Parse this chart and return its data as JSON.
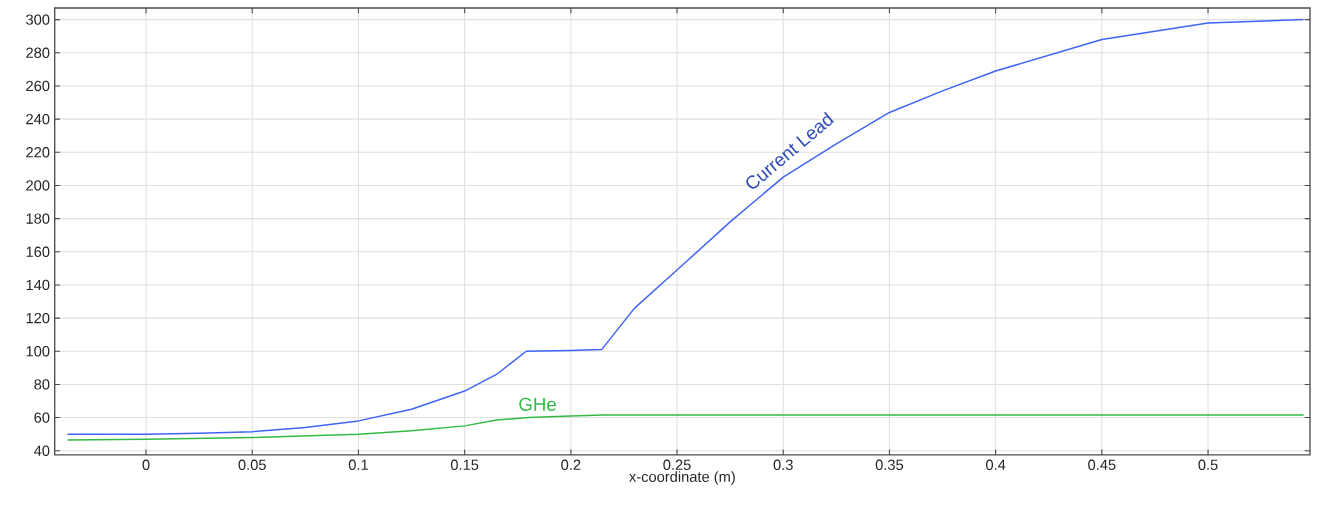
{
  "chart_data": {
    "type": "line",
    "xlabel": "x-coordinate (m)",
    "series": [
      {
        "name": "Current Lead",
        "color": "#3f64f5",
        "x": [
          -0.037,
          0,
          0.025,
          0.05,
          0.075,
          0.1,
          0.125,
          0.15,
          0.165,
          0.179,
          0.2,
          0.2145,
          0.23,
          0.25,
          0.275,
          0.3,
          0.325,
          0.35,
          0.375,
          0.4,
          0.45,
          0.5,
          0.545
        ],
        "values": [
          50,
          50,
          50.5,
          51.5,
          54,
          58,
          65,
          76,
          86,
          100,
          100.5,
          101,
          126,
          149,
          178,
          205,
          225,
          244,
          257,
          269,
          288,
          298,
          300
        ]
      },
      {
        "name": "GHe",
        "color": "#33bb44",
        "x": [
          -0.037,
          0,
          0.05,
          0.1,
          0.125,
          0.15,
          0.165,
          0.18,
          0.2,
          0.215,
          0.3,
          0.4,
          0.545
        ],
        "values": [
          46.5,
          47,
          48,
          50,
          52,
          55,
          58.5,
          60,
          61,
          61.5,
          61.5,
          61.5,
          61.5
        ]
      }
    ],
    "xlim": [
      -0.043,
      0.548
    ],
    "ylim": [
      37.5,
      307
    ],
    "xticks": [
      0,
      0.05,
      0.1,
      0.15,
      0.2,
      0.25,
      0.3,
      0.35,
      0.4,
      0.45,
      0.5
    ],
    "yticks": [
      40,
      60,
      80,
      100,
      120,
      140,
      160,
      180,
      200,
      220,
      240,
      260,
      280,
      300
    ],
    "grid": true,
    "legend": false,
    "marker": "none",
    "line_style": "solid"
  }
}
